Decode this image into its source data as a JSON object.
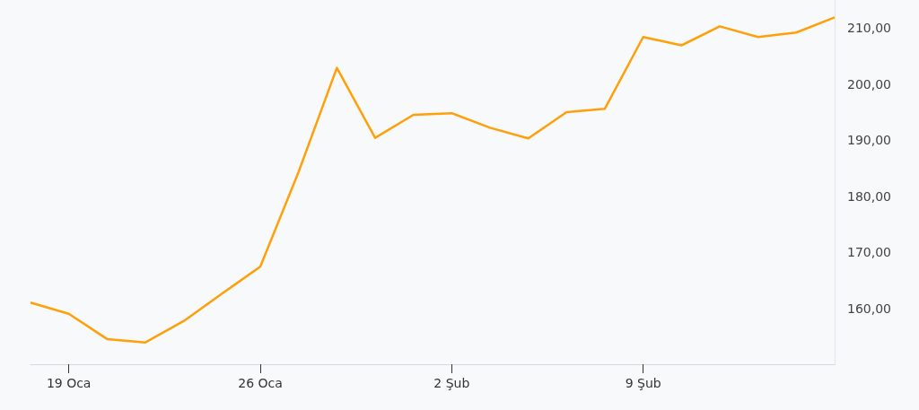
{
  "chart_data": {
    "type": "line",
    "categories": [
      null,
      "19 Oca",
      null,
      null,
      null,
      null,
      "26 Oca",
      null,
      null,
      null,
      null,
      "2 Şub",
      null,
      null,
      null,
      null,
      "9 Şub",
      null,
      null,
      null,
      null,
      null
    ],
    "series": [
      {
        "color": "#ff9f0a",
        "values": [
          161.0,
          159.0,
          154.5,
          153.9,
          157.7,
          162.6,
          167.4,
          184.3,
          202.9,
          190.4,
          194.5,
          194.8,
          192.2,
          190.3,
          195.0,
          195.6,
          208.4,
          206.9,
          210.3,
          208.4,
          209.2,
          211.9
        ]
      }
    ],
    "ylim": [
      150,
      215
    ],
    "yticks": [
      {
        "value": 160,
        "label": "160,00"
      },
      {
        "value": 170,
        "label": "170,00"
      },
      {
        "value": 180,
        "label": "180,00"
      },
      {
        "value": 190,
        "label": "190,00"
      },
      {
        "value": 200,
        "label": "200,00"
      },
      {
        "value": 210,
        "label": "210,00"
      }
    ],
    "grid": false,
    "marker": "none",
    "line_style": "solid"
  }
}
